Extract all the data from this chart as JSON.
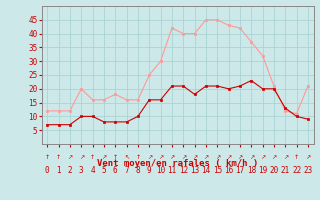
{
  "hours": [
    0,
    1,
    2,
    3,
    4,
    5,
    6,
    7,
    8,
    9,
    10,
    11,
    12,
    13,
    14,
    15,
    16,
    17,
    18,
    19,
    20,
    21,
    22,
    23
  ],
  "vent_moyen": [
    7,
    7,
    7,
    10,
    10,
    8,
    8,
    8,
    10,
    16,
    16,
    21,
    21,
    18,
    21,
    21,
    20,
    21,
    23,
    20,
    20,
    13,
    10,
    9
  ],
  "rafales": [
    12,
    12,
    12,
    20,
    16,
    16,
    18,
    16,
    16,
    25,
    30,
    42,
    40,
    40,
    45,
    45,
    43,
    42,
    37,
    32,
    21,
    12,
    11,
    21
  ],
  "xlabel": "Vent moyen/en rafales ( km/h )",
  "ylim": [
    0,
    50
  ],
  "yticks": [
    5,
    10,
    15,
    20,
    25,
    30,
    35,
    40,
    45
  ],
  "bg_color": "#cce8e8",
  "grid_color": "#aad4d4",
  "line_color_moyen": "#cc0000",
  "line_color_rafales": "#ff9999",
  "xlabel_color": "#cc0000",
  "tick_label_color": "#cc0000",
  "axis_fontsize": 5.5,
  "xlabel_fontsize": 6.5,
  "arrow_symbols": [
    "↑",
    "↑",
    "↗",
    "↗",
    "↑",
    "↗",
    "↑",
    "↖",
    "↑",
    "↗",
    "↗",
    "↗",
    "↗",
    "↗",
    "↗",
    "↗",
    "↗",
    "↗",
    "↗",
    "↗",
    "↗",
    "↗",
    "↑",
    "↗"
  ]
}
